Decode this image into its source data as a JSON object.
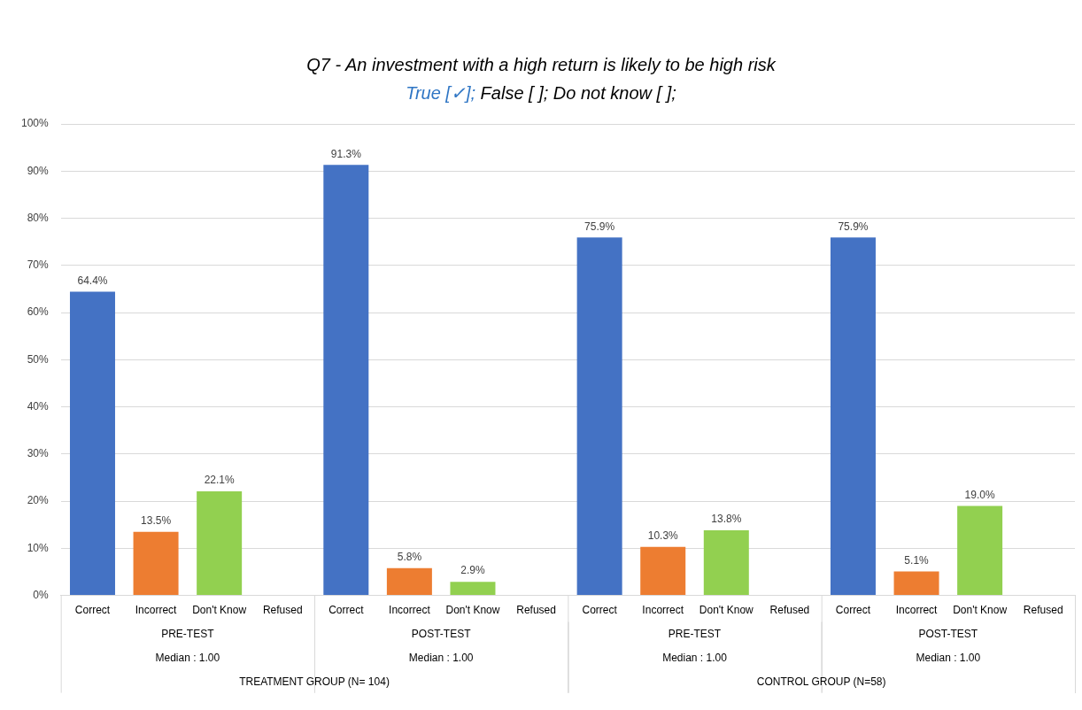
{
  "chart_data": {
    "type": "bar",
    "title": "Q7 - An investment with a high return is likely to be high risk",
    "subtitle": "True [✓]; False [   ]; Do not know [   ];",
    "categories": [
      "Correct",
      "Incorrect",
      "Don't Know",
      "Refused",
      "Correct",
      "Incorrect",
      "Don't Know",
      "Refused",
      "Correct",
      "Incorrect",
      "Don't Know",
      "Refused",
      "Correct",
      "Incorrect",
      "Don't Know",
      "Refused"
    ],
    "values": [
      64.4,
      13.5,
      22.1,
      0,
      91.3,
      5.8,
      2.9,
      0,
      75.9,
      10.3,
      13.8,
      0,
      75.9,
      5.1,
      19.0,
      0
    ],
    "colors": [
      "#4472c4",
      "#ed7d31",
      "#92d050",
      "#a5a5a5",
      "#4472c4",
      "#ed7d31",
      "#92d050",
      "#a5a5a5",
      "#4472c4",
      "#ed7d31",
      "#92d050",
      "#a5a5a5",
      "#4472c4",
      "#ed7d31",
      "#92d050",
      "#a5a5a5"
    ],
    "value_labels": [
      "64.4%",
      "13.5%",
      "22.1%",
      null,
      "91.3%",
      "5.8%",
      "2.9%",
      null,
      "75.9%",
      "10.3%",
      "13.8%",
      null,
      "75.9%",
      "5.1%",
      "19.0%",
      null
    ],
    "ylim": [
      0,
      100
    ],
    "yticks": [
      {
        "value": 0,
        "label": "0%"
      },
      {
        "value": 10,
        "label": "10%"
      },
      {
        "value": 20,
        "label": "20%"
      },
      {
        "value": 30,
        "label": "30%"
      },
      {
        "value": 40,
        "label": "40%"
      },
      {
        "value": 50,
        "label": "50%"
      },
      {
        "value": 60,
        "label": "60%"
      },
      {
        "value": 70,
        "label": "70%"
      },
      {
        "value": 80,
        "label": "80%"
      },
      {
        "value": 90,
        "label": "90%"
      },
      {
        "value": 100,
        "label": "100%"
      }
    ],
    "grid": "y",
    "legend": false,
    "annotations": [
      "PRE-TEST",
      "Median : 1.00",
      "POST-TEST",
      "Median : 1.00",
      "PRE-TEST",
      "Median : 1.00",
      "POST-TEST",
      "Median : 1.00",
      "TREATMENT GROUP (N= 104)",
      "CONTROL GROUP (N=58)"
    ]
  }
}
